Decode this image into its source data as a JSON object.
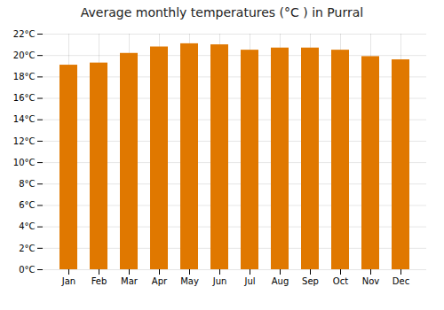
{
  "chart_data": {
    "type": "bar",
    "title": "Average monthly temperatures (°C ) in Purral",
    "categories": [
      "Jan",
      "Feb",
      "Mar",
      "Apr",
      "May",
      "Jun",
      "Jul",
      "Aug",
      "Sep",
      "Oct",
      "Nov",
      "Dec"
    ],
    "values": [
      19.1,
      19.3,
      20.2,
      20.8,
      21.1,
      21.0,
      20.5,
      20.7,
      20.7,
      20.5,
      19.9,
      19.6
    ],
    "color": "#E07800",
    "ylim": [
      0,
      22
    ],
    "yticks": [
      {
        "value": 0,
        "label": "0°C"
      },
      {
        "value": 2,
        "label": "2°C"
      },
      {
        "value": 4,
        "label": "4°C"
      },
      {
        "value": 6,
        "label": "6°C"
      },
      {
        "value": 8,
        "label": "8°C"
      },
      {
        "value": 10,
        "label": "10°C"
      },
      {
        "value": 12,
        "label": "12°C"
      },
      {
        "value": 14,
        "label": "14°C"
      },
      {
        "value": 16,
        "label": "16°C"
      },
      {
        "value": 18,
        "label": "18°C"
      },
      {
        "value": 20,
        "label": "20°C"
      },
      {
        "value": 22,
        "label": "22°C"
      }
    ],
    "grid": true
  }
}
